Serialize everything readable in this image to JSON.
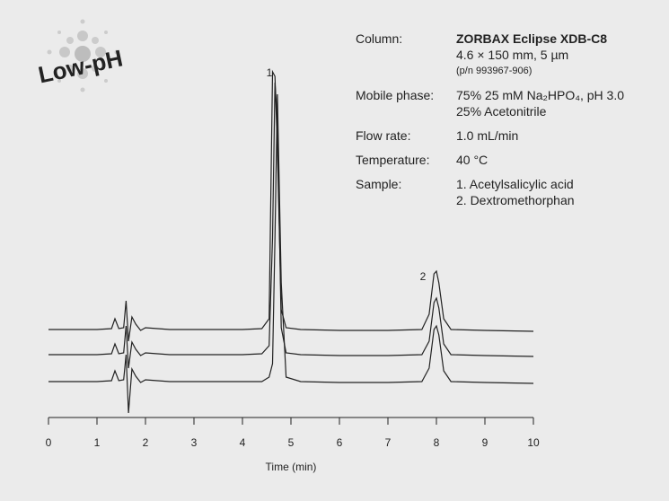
{
  "logo": "Low-pH",
  "info": [
    {
      "label": "Column:",
      "lines": [
        "ZORBAX Eclipse XDB-C8",
        "4.6 × 150 mm, 5 µm",
        "(p/n 993967-906)"
      ]
    },
    {
      "label": "Mobile phase:",
      "lines": [
        "75% 25 mM Na₂HPO₄, pH 3.0",
        "25% Acetonitrile"
      ]
    },
    {
      "label": "Flow rate:",
      "lines": [
        "1.0 mL/min"
      ]
    },
    {
      "label": "Temperature:",
      "lines": [
        "40 °C"
      ]
    },
    {
      "label": "Sample:",
      "lines": [
        "1. Acetylsalicylic acid",
        "2. Dextromethorphan"
      ]
    }
  ],
  "chart_data": {
    "type": "line",
    "x_label": "Time (min)",
    "peak_labels": [
      "1",
      "2"
    ],
    "xlim": [
      0,
      10
    ],
    "xticks": [
      0,
      1,
      2,
      3,
      4,
      5,
      6,
      7,
      8,
      9,
      10
    ],
    "ylim": [
      0,
      400
    ],
    "x": [
      0,
      0.5,
      1.0,
      1.3,
      1.37,
      1.45,
      1.55,
      1.6,
      1.65,
      1.72,
      1.8,
      1.9,
      2.0,
      2.5,
      3,
      3.5,
      4,
      4.4,
      4.55,
      4.62,
      4.67,
      4.72,
      4.8,
      4.9,
      5.2,
      6,
      7,
      7.7,
      7.85,
      7.95,
      8.0,
      8.05,
      8.15,
      8.3,
      9,
      10
    ],
    "series": [
      {
        "color": "#222222",
        "values": [
          98,
          98,
          98,
          99,
          110,
          99,
          100,
          130,
          85,
          112,
          104,
          97,
          100,
          98,
          98,
          98,
          98,
          99,
          110,
          385,
          380,
          300,
          120,
          100,
          98,
          97,
          97,
          98,
          115,
          160,
          163,
          150,
          110,
          98,
          97,
          96
        ]
      },
      {
        "color": "#222222",
        "values": [
          70,
          70,
          70,
          71,
          82,
          71,
          72,
          102,
          55,
          84,
          76,
          69,
          72,
          70,
          70,
          70,
          70,
          71,
          80,
          200,
          373,
          330,
          100,
          72,
          70,
          69,
          69,
          70,
          85,
          128,
          133,
          122,
          82,
          70,
          69,
          68
        ]
      },
      {
        "color": "#222222",
        "values": [
          40,
          40,
          40,
          41,
          52,
          41,
          42,
          70,
          5,
          54,
          46,
          39,
          42,
          40,
          40,
          40,
          40,
          40,
          45,
          60,
          200,
          360,
          150,
          45,
          40,
          39,
          39,
          40,
          55,
          98,
          102,
          92,
          52,
          40,
          39,
          38
        ]
      }
    ]
  }
}
